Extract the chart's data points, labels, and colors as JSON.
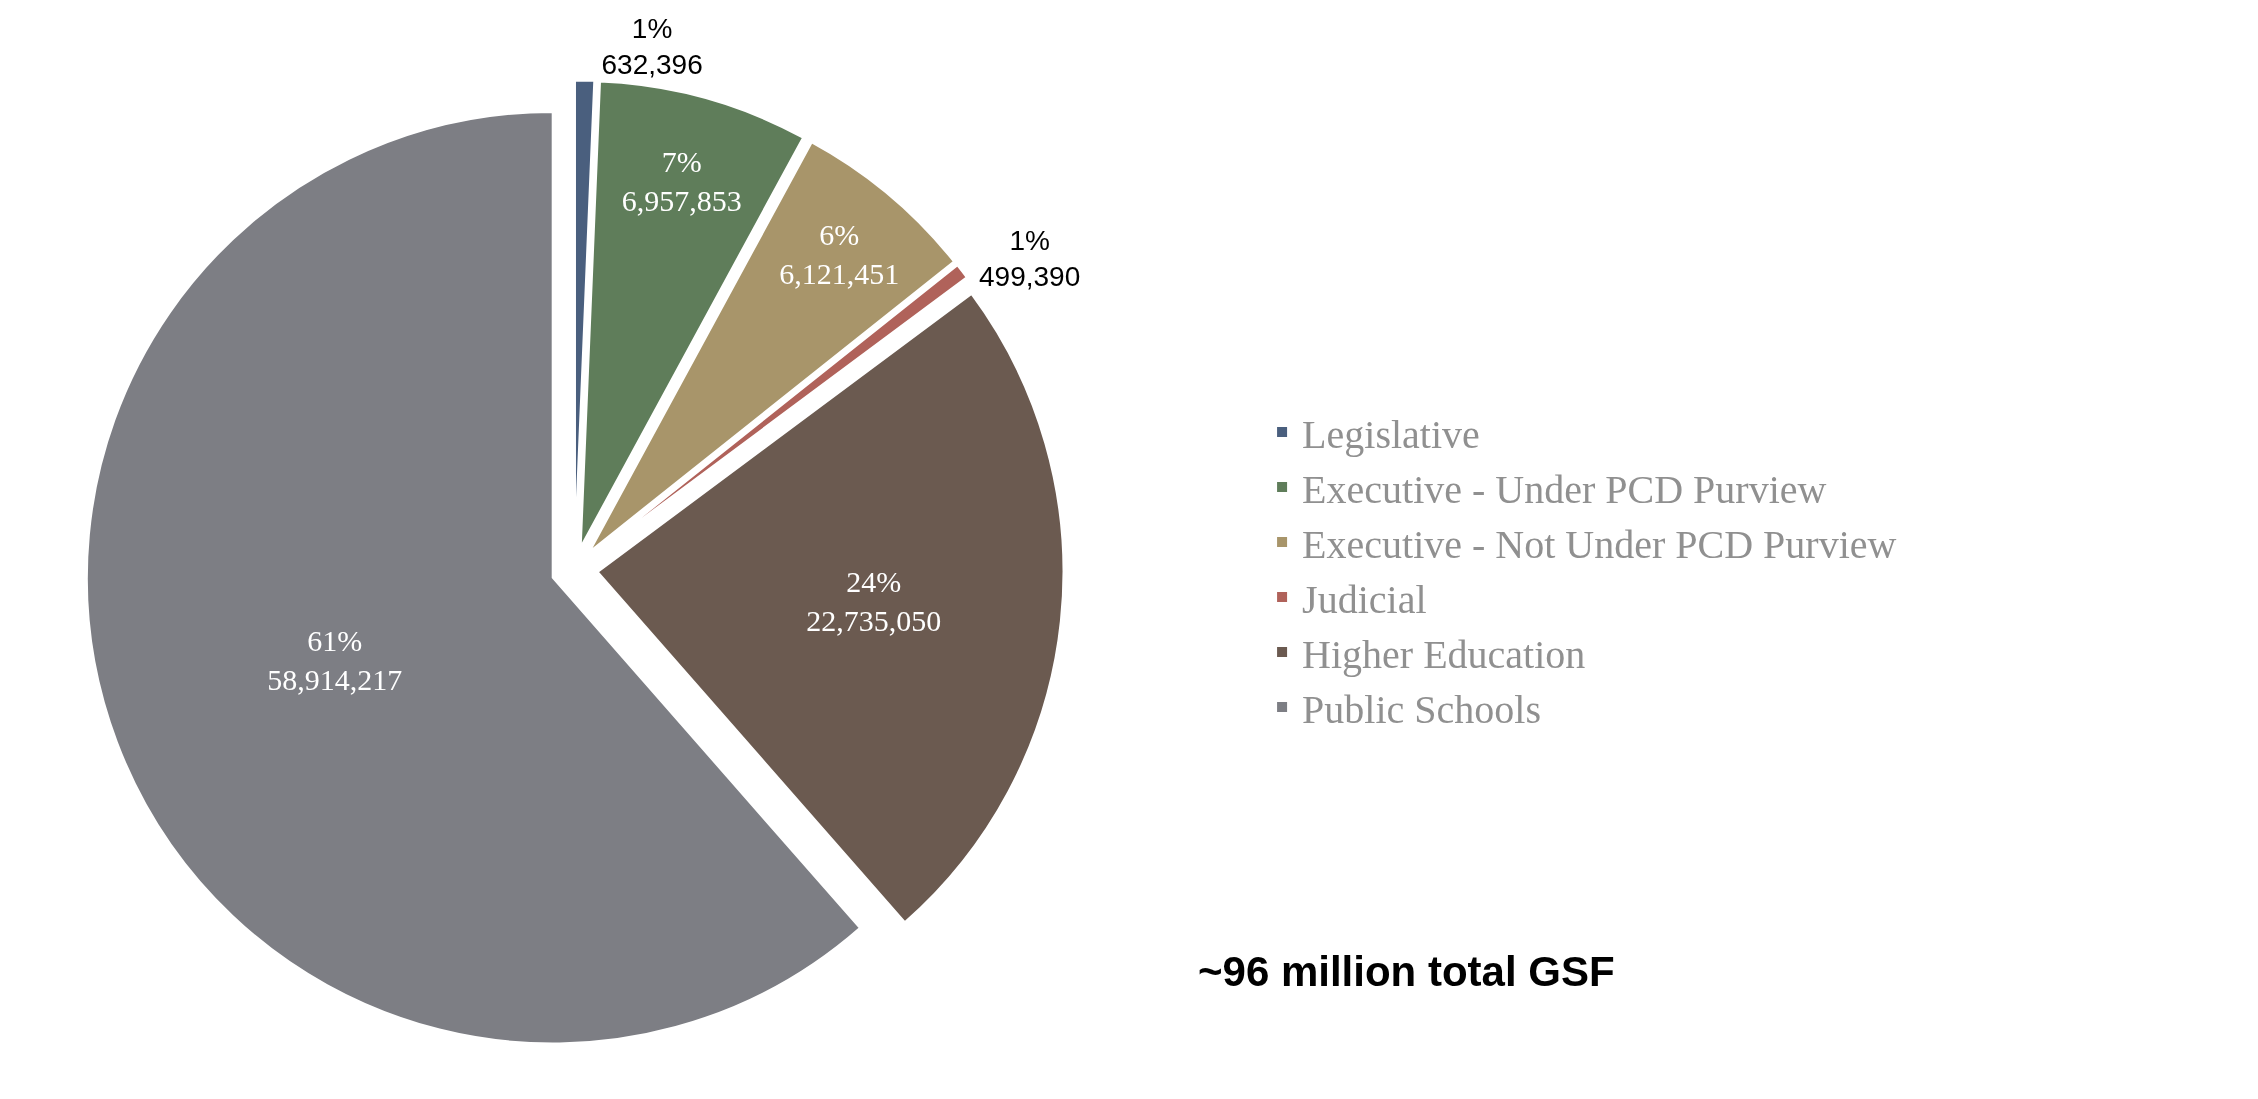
{
  "chart_data": {
    "type": "pie",
    "categories": [
      "Legislative",
      "Executive - Under PCD Purview",
      "Executive - Not Under PCD Purview",
      "Judicial",
      "Higher Education",
      "Public Schools"
    ],
    "values": [
      632396,
      6957853,
      6121451,
      499390,
      22735050,
      58914217
    ],
    "colors": [
      "#4a5f7e",
      "#5f7d5a",
      "#a8956a",
      "#b0625a",
      "#6b5a50",
      "#7d7e84"
    ],
    "value_labels": [
      "1%\n632,396",
      "7%\n6,957,853",
      "6%\n6,121,451",
      "1%\n499,390",
      "24%\n22,735,050",
      "61%\n58,914,217"
    ],
    "legend": "right",
    "annotations": [
      "~96 million total GSF"
    ]
  }
}
